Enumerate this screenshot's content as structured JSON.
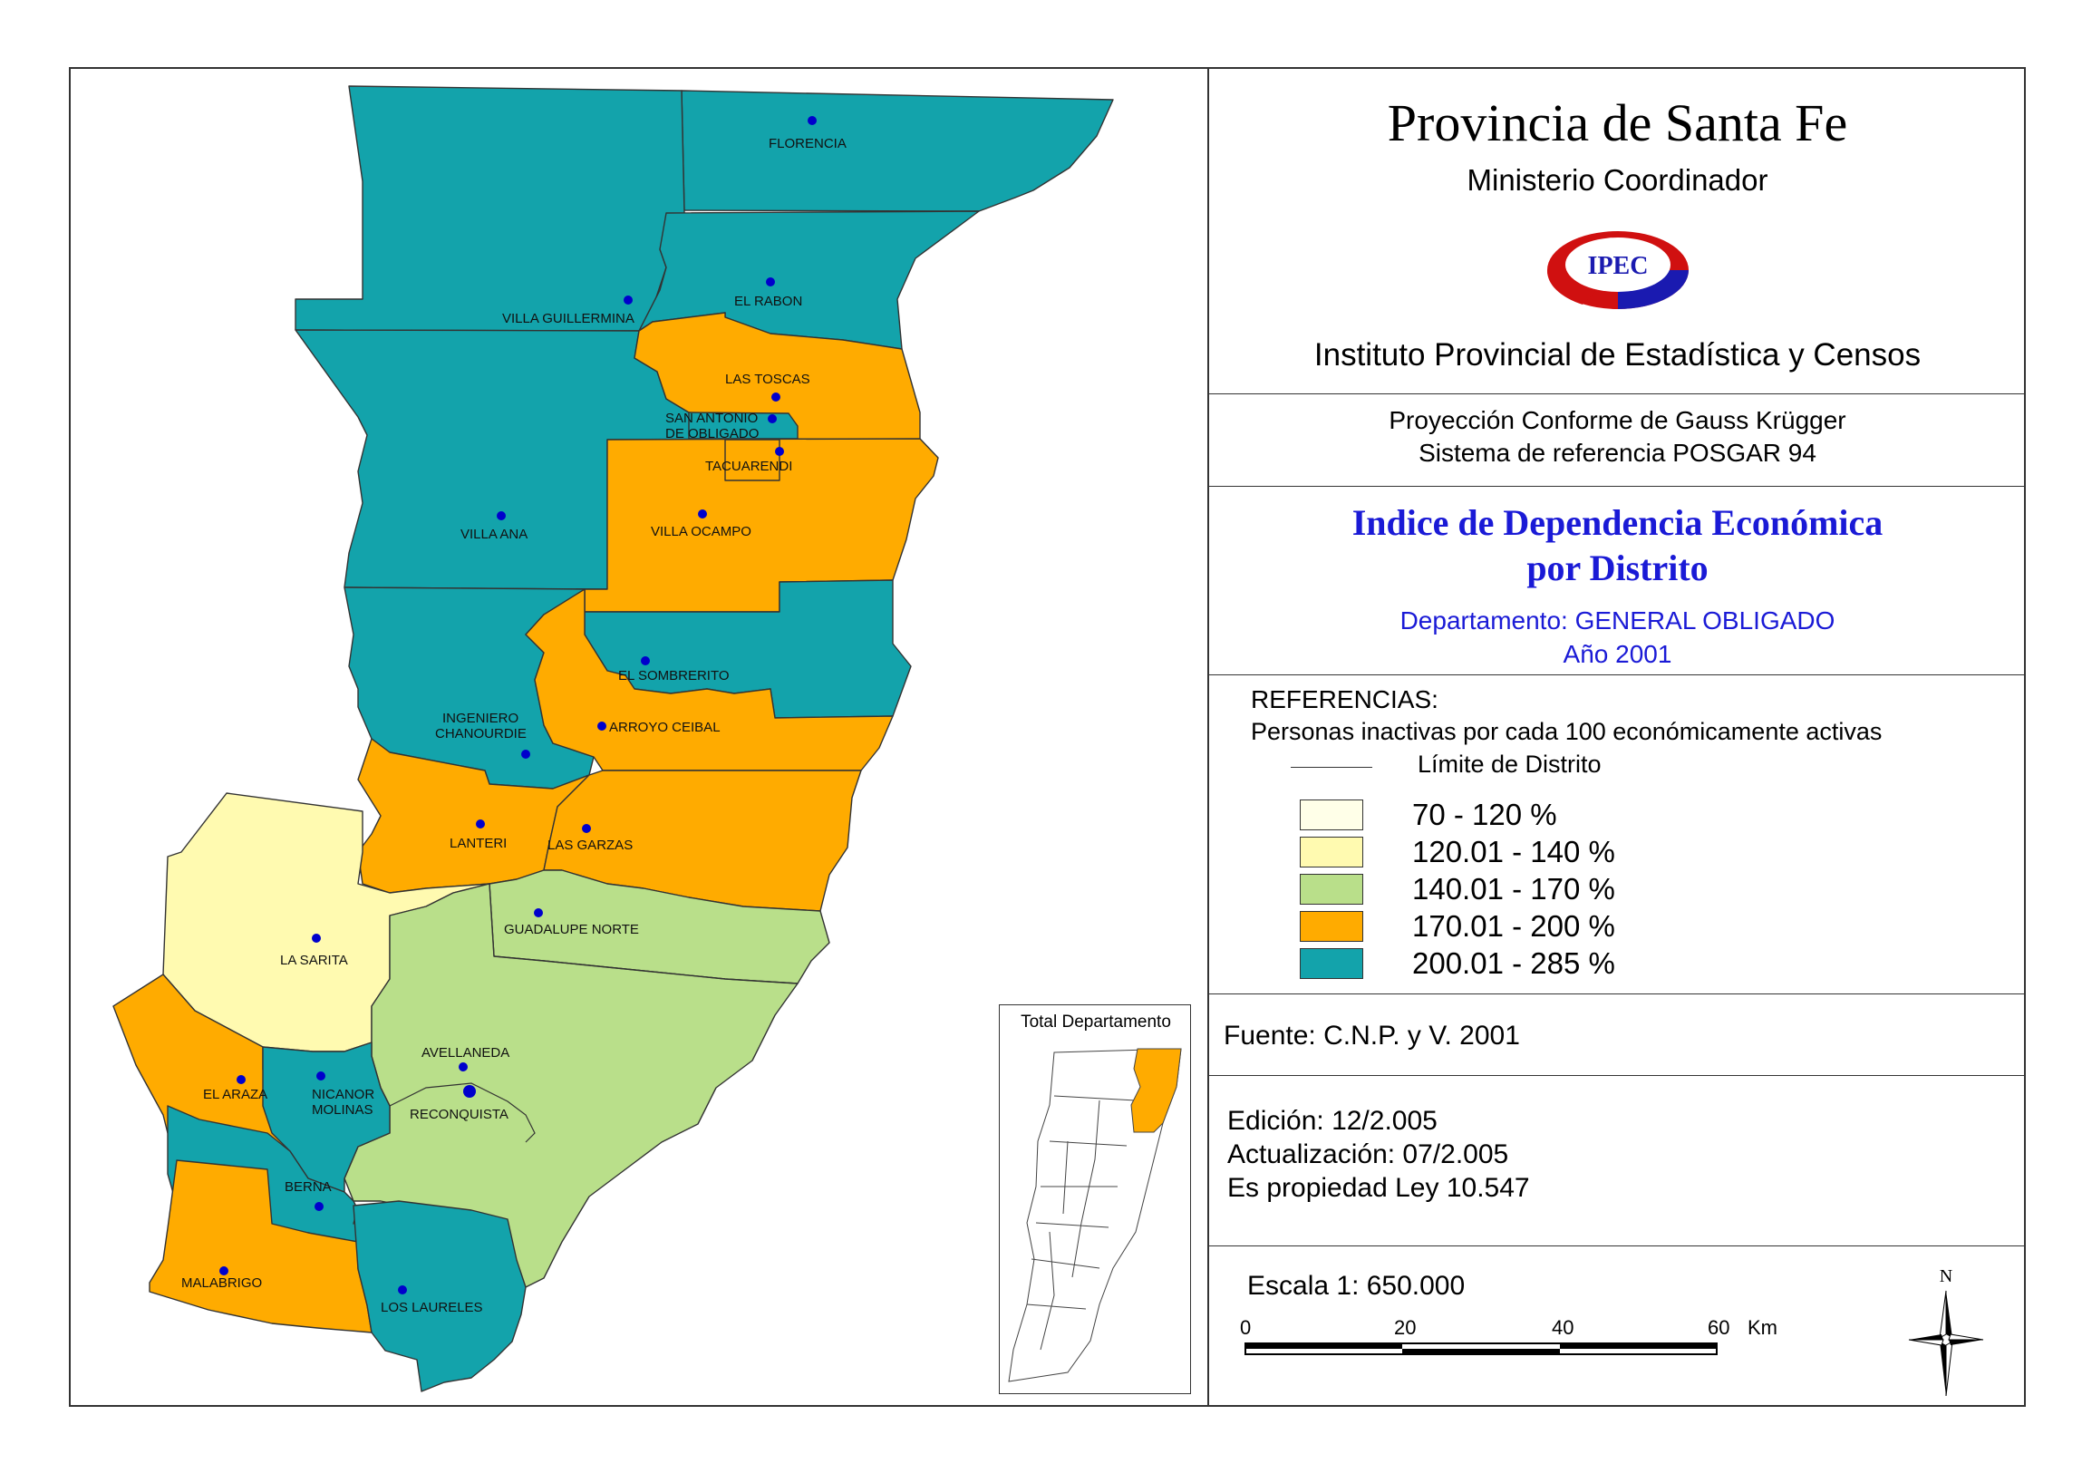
{
  "header": {
    "title": "Provincia de Santa Fe",
    "subtitle": "Ministerio Coordinador",
    "logo_text": "IPEC",
    "institute": "Instituto Provincial de Estadística y Censos"
  },
  "projection": {
    "line1": "Proyección Conforme de Gauss Krügger",
    "line2": "Sistema de referencia POSGAR 94"
  },
  "index": {
    "title_line1": "Indice de Dependencia Económica",
    "title_line2": "por Distrito",
    "department": "Departamento:  GENERAL OBLIGADO",
    "year": "Año 2001"
  },
  "legend": {
    "title": "REFERENCIAS:",
    "subtitle": "Personas inactivas por cada 100 económicamente activas",
    "limit_label": "Límite de  Distrito",
    "classes": [
      {
        "label": "70 - 120 %",
        "color": "#ffffe8"
      },
      {
        "label": "120.01 - 140 %",
        "color": "#fffab0"
      },
      {
        "label": "140.01 - 170 %",
        "color": "#b9df8a"
      },
      {
        "label": "170.01 - 200 %",
        "color": "#ffab00"
      },
      {
        "label": "200.01 - 285 %",
        "color": "#13a3ab"
      }
    ]
  },
  "source": "Fuente:  C.N.P. y V. 2001",
  "edition": {
    "edicion": "Edición:  12/2.005",
    "actualizacion": "Actualización:  07/2.005",
    "propiedad": "Es propiedad Ley 10.547"
  },
  "scale": {
    "label": "Escala 1: 650.000",
    "ticks": [
      "0",
      "20",
      "40",
      "60"
    ],
    "unit": "Km"
  },
  "north_label": "N",
  "inset": {
    "title": "Total Departamento",
    "highlight_color": "#ffab00"
  },
  "districts": [
    {
      "name": "FLORENCIA",
      "class": 4
    },
    {
      "name": "VILLA GUILLERMINA",
      "class": 4
    },
    {
      "name": "EL RABON",
      "class": 4
    },
    {
      "name": "LAS TOSCAS",
      "class": 3
    },
    {
      "name": "SAN ANTONIO DE OBLIGADO",
      "class": 4
    },
    {
      "name": "TACUARENDI",
      "class": 3
    },
    {
      "name": "VILLA ANA",
      "class": 4
    },
    {
      "name": "VILLA OCAMPO",
      "class": 3
    },
    {
      "name": "EL SOMBRERITO",
      "class": 4
    },
    {
      "name": "INGENIERO CHANOURDIE",
      "class": 4
    },
    {
      "name": "ARROYO CEIBAL",
      "class": 3
    },
    {
      "name": "LANTERI",
      "class": 3
    },
    {
      "name": "LAS GARZAS",
      "class": 3
    },
    {
      "name": "GUADALUPE NORTE",
      "class": 2
    },
    {
      "name": "LA SARITA",
      "class": 1
    },
    {
      "name": "AVELLANEDA",
      "class": 2
    },
    {
      "name": "RECONQUISTA",
      "class": 2
    },
    {
      "name": "EL ARAZA",
      "class": 3
    },
    {
      "name": "NICANOR MOLINAS",
      "class": 4
    },
    {
      "name": "BERNA",
      "class": 4
    },
    {
      "name": "MALABRIGO",
      "class": 3
    },
    {
      "name": "LOS LAURELES",
      "class": 4
    }
  ],
  "map_labels": {
    "florencia": "FLORENCIA",
    "villa_guillermina": "VILLA GUILLERMINA",
    "el_rabon": "EL RABON",
    "las_toscas": "LAS TOSCAS",
    "san_antonio_1": "SAN ANTONIO",
    "san_antonio_2": "DE OBLIGADO",
    "tacuarendi": "TACUARENDI",
    "villa_ana": "VILLA ANA",
    "villa_ocampo": "VILLA OCAMPO",
    "el_sombrerito": "EL SOMBRERITO",
    "ingeniero_1": "INGENIERO",
    "ingeniero_2": "CHANOURDIE",
    "arroyo_ceibal": "ARROYO CEIBAL",
    "lanteri": "LANTERI",
    "las_garzas": "LAS GARZAS",
    "guadalupe_norte": "GUADALUPE NORTE",
    "la_sarita": "LA SARITA",
    "avellaneda": "AVELLANEDA",
    "reconquista": "RECONQUISTA",
    "el_araza": "EL ARAZA",
    "nicanor_1": "NICANOR",
    "nicanor_2": "MOLINAS",
    "berna": "BERNA",
    "malabrigo": "MALABRIGO",
    "los_laureles": "LOS LAURELES"
  }
}
